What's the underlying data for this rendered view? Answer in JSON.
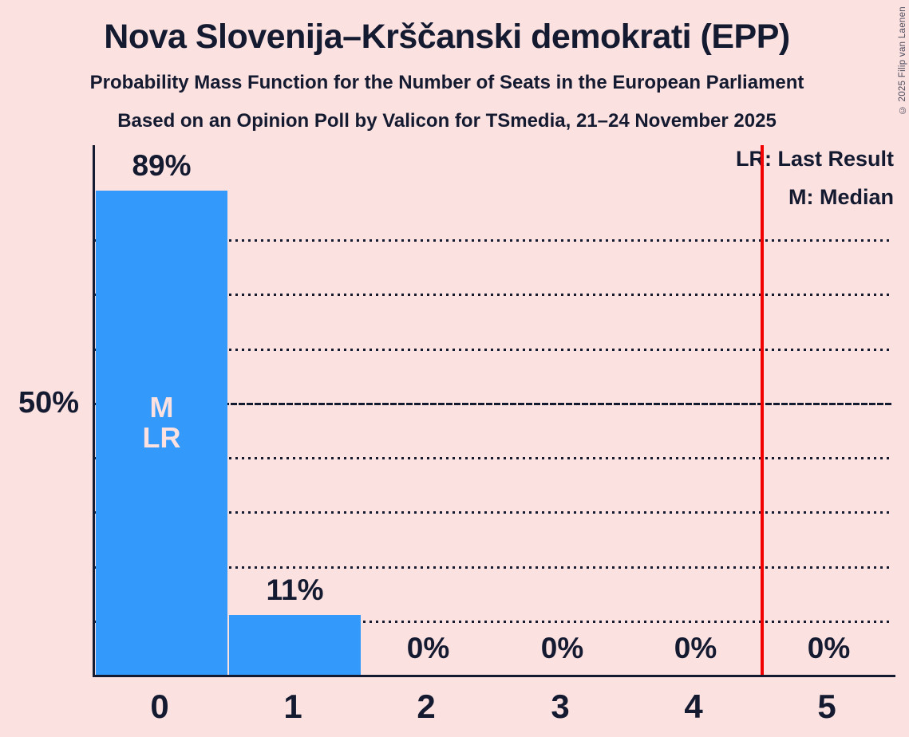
{
  "title": "Nova Slovenija–Krščanski demokrati (EPP)",
  "subtitle1": "Probability Mass Function for the Number of Seats in the European Parliament",
  "subtitle2": "Based on an Opinion Poll by Valicon for TSmedia, 21–24 November 2025",
  "copyright": "© 2025 Filip van Laenen",
  "legend": {
    "last_result": "LR: Last Result",
    "median": "M: Median"
  },
  "y_axis": {
    "tick_label": "50%",
    "tick_value": 50
  },
  "colors": {
    "background": "#fce1e1",
    "bar": "#3399fa",
    "text": "#141a30",
    "red_line": "#f20000",
    "annotation_text": "#fce1e1"
  },
  "chart_data": {
    "type": "bar",
    "title": "Probability Mass Function for the Number of Seats in the European Parliament",
    "categories": [
      "0",
      "1",
      "2",
      "3",
      "4",
      "5"
    ],
    "values": [
      89,
      11,
      0,
      0,
      0,
      0
    ],
    "bar_labels": [
      "89%",
      "11%",
      "0%",
      "0%",
      "0%",
      "0%"
    ],
    "xlabel": "",
    "ylabel": "",
    "ylim": [
      0,
      97
    ],
    "gridlines_pct": [
      10,
      20,
      30,
      40,
      60,
      70,
      80
    ],
    "solid_gridline_pct": 50,
    "median_seat": "0",
    "last_result_seat": "0",
    "bar0_annotation_lines": [
      "M",
      "LR"
    ],
    "red_line_x": 4.5,
    "legend_position": "top-right",
    "grid": "dotted-horizontal"
  }
}
